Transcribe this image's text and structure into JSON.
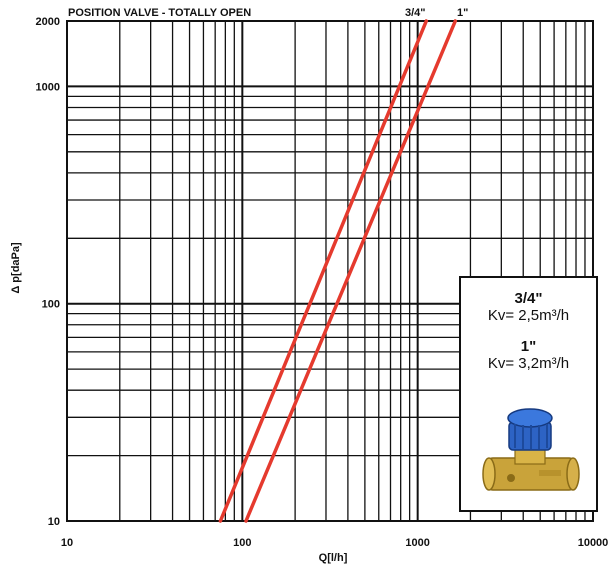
{
  "chart_data": {
    "type": "line",
    "title": "POSITION VALVE  - TOTALLY OPEN",
    "xlabel": "Q[l/h]",
    "ylabel": "Δ p[daPa]",
    "xscale": "log",
    "yscale": "log",
    "xlim": [
      10,
      10000
    ],
    "ylim": [
      10,
      2000
    ],
    "grid": true,
    "x_ticks": [
      "10",
      "100",
      "1000",
      "10000"
    ],
    "y_ticks": [
      "10",
      "100",
      "1000",
      "2000"
    ],
    "series": [
      {
        "name": "3/4\"",
        "color": "#e53a2e",
        "x": [
          75,
          1120
        ],
        "y": [
          10,
          2000
        ]
      },
      {
        "name": "1\"",
        "color": "#e53a2e",
        "x": [
          105,
          1640
        ],
        "y": [
          10,
          2000
        ]
      }
    ],
    "inset": {
      "size_a": "3/4\"",
      "kv_a": "Kv= 2,5m³/h",
      "size_b": "1\"",
      "kv_b": "Kv= 3,2m³/h",
      "image_icon": "brass-valve-with-blue-cap"
    }
  }
}
